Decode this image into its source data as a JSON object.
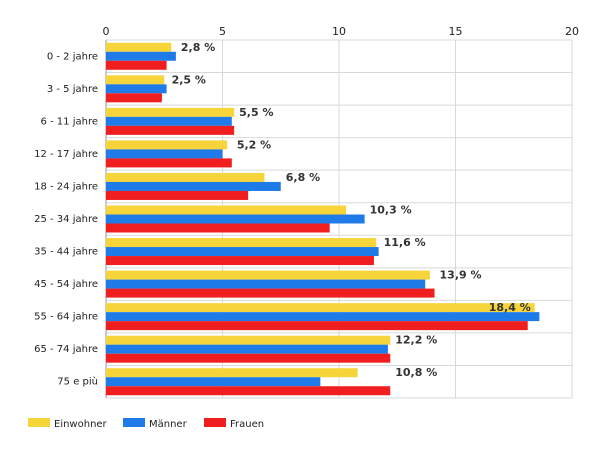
{
  "chart_data": {
    "type": "bar",
    "orientation": "horizontal",
    "categories": [
      "0 - 2 jahre",
      "3 - 5 jahre",
      "6 - 11 jahre",
      "12 - 17 jahre",
      "18 - 24 jahre",
      "25 - 34 jahre",
      "35 - 44 jahre",
      "45 - 54 jahre",
      "55 - 64 jahre",
      "65 - 74 jahre",
      "75 e più"
    ],
    "series": [
      {
        "name": "Einwohner",
        "color": "#f7d53a",
        "values": [
          2.8,
          2.5,
          5.5,
          5.2,
          6.8,
          10.3,
          11.6,
          13.9,
          18.4,
          12.2,
          10.8
        ]
      },
      {
        "name": "Männer",
        "color": "#1f7be8",
        "values": [
          3.0,
          2.6,
          5.4,
          5.0,
          7.5,
          11.1,
          11.7,
          13.7,
          18.6,
          12.1,
          9.2
        ]
      },
      {
        "name": "Frauen",
        "color": "#f01e1e",
        "values": [
          2.6,
          2.4,
          5.5,
          5.4,
          6.1,
          9.6,
          11.5,
          14.1,
          18.1,
          12.2,
          12.2
        ]
      }
    ],
    "data_labels": [
      "2,8 %",
      "2,5 %",
      "5,5 %",
      "5,2 %",
      "6,8 %",
      "10,3 %",
      "11,6 %",
      "13,9 %",
      "18,4 %",
      "12,2 %",
      "10,8 %"
    ],
    "xticks": [
      0,
      5,
      10,
      15,
      20
    ],
    "xlim": [
      0,
      20
    ],
    "grid": true,
    "legend_position": "bottom-left",
    "title": "",
    "xlabel": "",
    "ylabel": ""
  }
}
